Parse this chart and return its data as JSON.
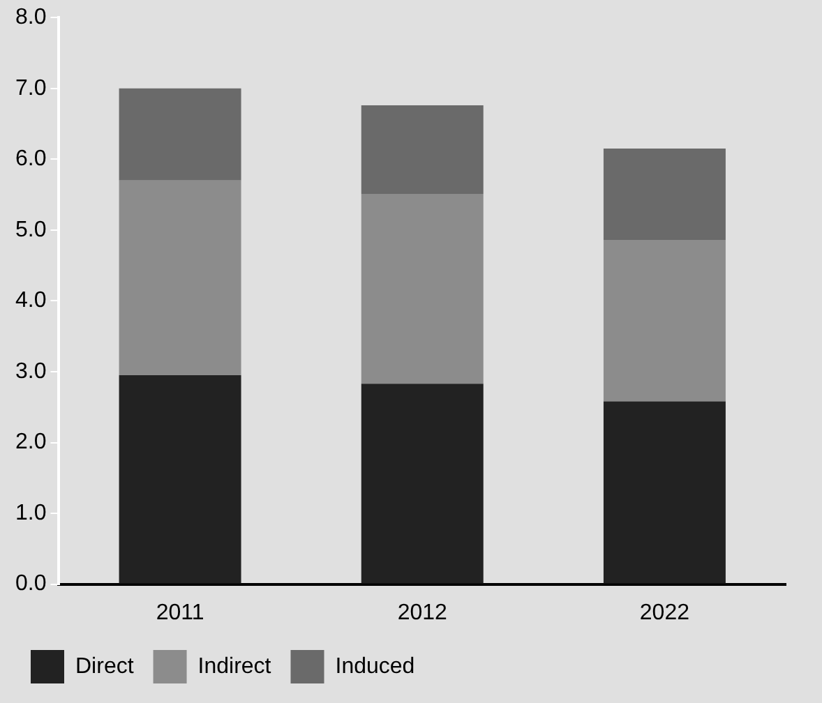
{
  "chart_data": {
    "type": "bar",
    "stacked": true,
    "categories": [
      "2011",
      "2012",
      "2022"
    ],
    "series": [
      {
        "name": "Direct",
        "color": "#222222",
        "values": [
          2.95,
          2.83,
          2.58
        ]
      },
      {
        "name": "Indirect",
        "color": "#8c8c8c",
        "values": [
          2.75,
          2.68,
          2.28
        ]
      },
      {
        "name": "Induced",
        "color": "#6a6a6a",
        "values": [
          1.3,
          1.25,
          1.29
        ]
      }
    ],
    "ylim": [
      0,
      8
    ],
    "yticks": [
      {
        "value": 0,
        "label": "0.0"
      },
      {
        "value": 1,
        "label": "1.0"
      },
      {
        "value": 2,
        "label": "2.0"
      },
      {
        "value": 3,
        "label": "3.0"
      },
      {
        "value": 4,
        "label": "4.0"
      },
      {
        "value": 5,
        "label": "5.0"
      },
      {
        "value": 6,
        "label": "6.0"
      },
      {
        "value": 7,
        "label": "7.0"
      },
      {
        "value": 8,
        "label": "8.0"
      }
    ],
    "grid": false,
    "legend": "bottom"
  }
}
